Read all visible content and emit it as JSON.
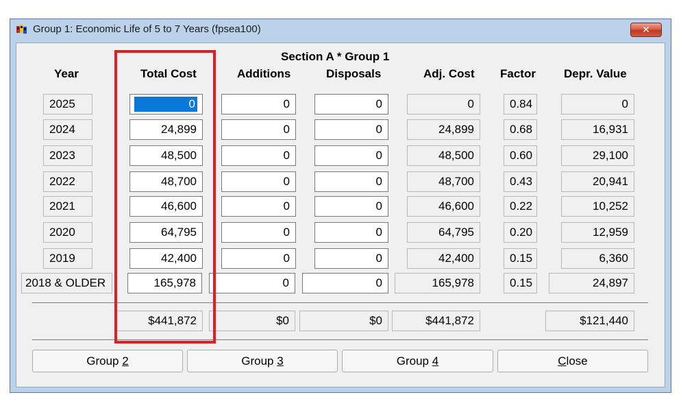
{
  "window": {
    "title": "Group 1: Economic Life of 5 to 7 Years  (fpsea100)",
    "close_glyph": "✕"
  },
  "section_title": "Section A * Group 1",
  "headers": {
    "year": "Year",
    "total_cost": "Total Cost",
    "additions": "Additions",
    "disposals": "Disposals",
    "adj_cost": "Adj. Cost",
    "factor": "Factor",
    "depr_value": "Depr. Value"
  },
  "rows": [
    {
      "year": "2025",
      "total_cost": "0",
      "additions": "0",
      "disposals": "0",
      "adj_cost": "0",
      "factor": "0.84",
      "depr_value": "0"
    },
    {
      "year": "2024",
      "total_cost": "24,899",
      "additions": "0",
      "disposals": "0",
      "adj_cost": "24,899",
      "factor": "0.68",
      "depr_value": "16,931"
    },
    {
      "year": "2023",
      "total_cost": "48,500",
      "additions": "0",
      "disposals": "0",
      "adj_cost": "48,500",
      "factor": "0.60",
      "depr_value": "29,100"
    },
    {
      "year": "2022",
      "total_cost": "48,700",
      "additions": "0",
      "disposals": "0",
      "adj_cost": "48,700",
      "factor": "0.43",
      "depr_value": "20,941"
    },
    {
      "year": "2021",
      "total_cost": "46,600",
      "additions": "0",
      "disposals": "0",
      "adj_cost": "46,600",
      "factor": "0.22",
      "depr_value": "10,252"
    },
    {
      "year": "2020",
      "total_cost": "64,795",
      "additions": "0",
      "disposals": "0",
      "adj_cost": "64,795",
      "factor": "0.20",
      "depr_value": "12,959"
    },
    {
      "year": "2019",
      "total_cost": "42,400",
      "additions": "0",
      "disposals": "0",
      "adj_cost": "42,400",
      "factor": "0.15",
      "depr_value": "6,360"
    },
    {
      "year": "2018 & OLDER",
      "total_cost": "165,978",
      "additions": "0",
      "disposals": "0",
      "adj_cost": "165,978",
      "factor": "0.15",
      "depr_value": "24,897"
    }
  ],
  "totals": {
    "total_cost": "$441,872",
    "additions": "$0",
    "disposals": "$0",
    "adj_cost": "$441,872",
    "depr_value": "$121,440"
  },
  "buttons": {
    "group2": {
      "pre": "Group ",
      "key": "2"
    },
    "group3": {
      "pre": "Group ",
      "key": "3"
    },
    "group4": {
      "pre": "Group ",
      "key": "4"
    },
    "close": {
      "key": "C",
      "post": "lose"
    }
  },
  "colors": {
    "selection": "#0a78d7",
    "highlight_annotation": "#e02020",
    "window_frame": "#bcd2ea"
  }
}
